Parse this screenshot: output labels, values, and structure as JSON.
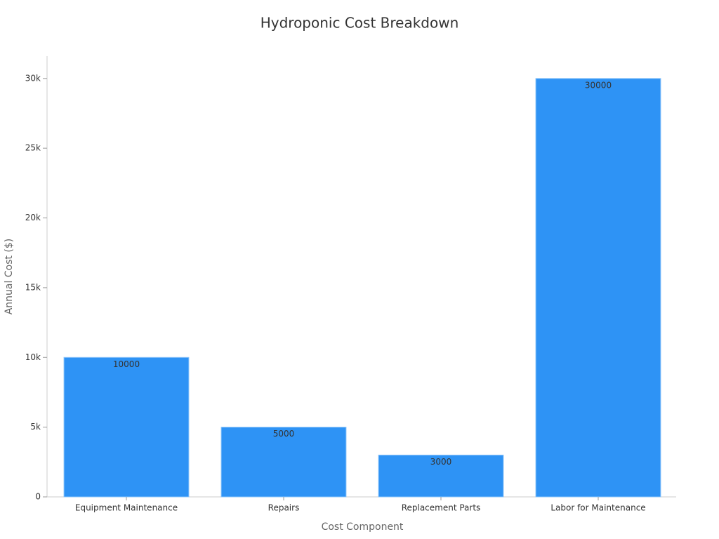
{
  "chart_data": {
    "type": "bar",
    "title": "Hydroponic Cost Breakdown",
    "x_label": "Cost Component",
    "y_label": "Annual Cost ($)",
    "categories": [
      "Equipment Maintenance",
      "Repairs",
      "Replacement Parts",
      "Labor for Maintenance"
    ],
    "values": [
      10000,
      5000,
      3000,
      30000
    ],
    "color": "#2e93f5",
    "ylim": [
      0,
      31600
    ],
    "yticks": [
      0,
      {
        "value": 5000,
        "label": "5k"
      },
      {
        "value": 10000,
        "label": "10k"
      },
      {
        "value": 15000,
        "label": "15k"
      },
      {
        "value": 20000,
        "label": "20k"
      },
      {
        "value": 25000,
        "label": "25k"
      },
      {
        "value": 30000,
        "label": "30k"
      }
    ],
    "grid": false
  }
}
